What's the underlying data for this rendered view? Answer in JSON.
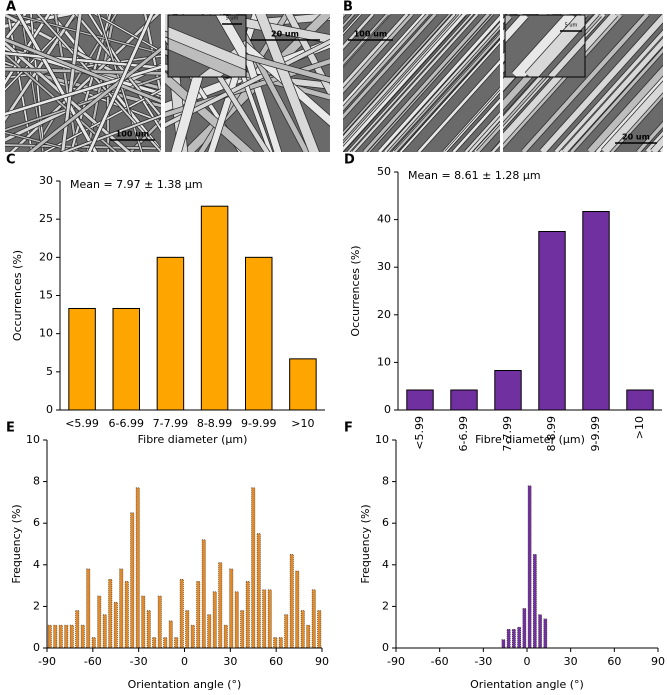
{
  "images": [
    {
      "panel": "A",
      "scale_bars": [
        "100 um",
        "5 um",
        "20 um"
      ]
    },
    {
      "panel": "B",
      "scale_bars": [
        "100 um",
        "5 um",
        "20 um"
      ]
    }
  ],
  "chart_data": [
    {
      "type": "bar",
      "panel": "C",
      "annotation": "Mean = 7.97 ± 1.38 µm",
      "xlabel": "Fibre diameter (µm)",
      "ylabel": "Occurrences (%)",
      "categories": [
        "<5.99",
        "6-6.99",
        "7-7.99",
        "8-8.99",
        "9-9.99",
        ">10"
      ],
      "values": [
        13.3,
        13.3,
        20,
        26.7,
        20,
        6.7
      ],
      "color": "#ffa500",
      "ylim": [
        0,
        30
      ],
      "yticks": [
        0,
        5,
        10,
        15,
        20,
        25,
        30
      ]
    },
    {
      "type": "bar",
      "panel": "D",
      "annotation": "Mean  = 8.61 ± 1.28 µm",
      "xlabel": "Fibre diameter (µm)",
      "ylabel": "Occurrences (%)",
      "categories": [
        "<5.99",
        "6-6.99",
        "7-7.99",
        "8-8.99",
        "9-9.99",
        ">10"
      ],
      "values": [
        4.2,
        4.2,
        8.3,
        37.5,
        41.7,
        4.2
      ],
      "color": "#7030a0",
      "xtick_label_rotation": 90,
      "ylim": [
        0,
        50
      ],
      "yticks": [
        0,
        10,
        20,
        30,
        40,
        50
      ]
    },
    {
      "type": "histogram",
      "panel": "E",
      "xlabel": "Orientation angle (°)",
      "ylabel": "Frequency (%)",
      "bins": [
        -90,
        -86.4,
        -82.8,
        -79.2,
        -75.6,
        -72,
        -68.4,
        -64.8,
        -61.2,
        -57.6,
        -54,
        -50.4,
        -46.8,
        -43.2,
        -39.6,
        -36,
        -32.4,
        -28.8,
        -25.2,
        -21.6,
        -18,
        -14.4,
        -10.8,
        -7.2,
        -3.6,
        0,
        3.6,
        7.2,
        10.8,
        14.4,
        18,
        21.6,
        25.2,
        28.8,
        32.4,
        36,
        39.6,
        43.2,
        46.8,
        50.4,
        54,
        57.6,
        61.2,
        64.8,
        68.4,
        72,
        75.6,
        79.2,
        82.8,
        86.4,
        90
      ],
      "values": [
        1.1,
        1.1,
        1.1,
        1.1,
        1.1,
        1.8,
        1.1,
        3.8,
        0.5,
        2.5,
        1.6,
        3.3,
        2.2,
        3.8,
        3.2,
        6.5,
        7.7,
        2.5,
        1.8,
        0.5,
        2.5,
        0.5,
        1.3,
        0.5,
        3.3,
        1.8,
        1.1,
        3.2,
        5.2,
        1.6,
        2.7,
        4.1,
        1.1,
        3.8,
        2.7,
        1.8,
        3.2,
        7.7,
        5.5,
        2.8,
        2.8,
        0.5,
        0.5,
        1.6,
        4.5,
        3.7,
        1.8,
        1.1,
        2.8,
        1.8
      ],
      "color": "#e08a2c",
      "xlim": [
        -90,
        90
      ],
      "xticks": [
        -90,
        -60,
        -30,
        0,
        30,
        60,
        90
      ],
      "ylim": [
        0,
        10
      ],
      "yticks": [
        0,
        2,
        4,
        6,
        8,
        10
      ]
    },
    {
      "type": "histogram",
      "panel": "F",
      "xlabel": "Orientation angle (°)",
      "ylabel": "Frequency (%)",
      "bins": [
        -90,
        -86.4,
        -82.8,
        -79.2,
        -75.6,
        -72,
        -68.4,
        -64.8,
        -61.2,
        -57.6,
        -54,
        -50.4,
        -46.8,
        -43.2,
        -39.6,
        -36,
        -32.4,
        -28.8,
        -25.2,
        -21.6,
        -18,
        -14.4,
        -10.8,
        -7.2,
        -3.6,
        0,
        3.6,
        7.2,
        10.8,
        14.4,
        18,
        21.6,
        25.2,
        28.8,
        32.4,
        36,
        39.6,
        43.2,
        46.8,
        50.4,
        54,
        57.6,
        61.2,
        64.8,
        68.4,
        72,
        75.6,
        79.2,
        82.8,
        86.4,
        90
      ],
      "values": [
        0,
        0,
        0,
        0,
        0,
        0,
        0,
        0,
        0,
        0,
        0,
        0,
        0,
        0,
        0,
        0,
        0,
        0,
        0,
        0,
        0.4,
        0.9,
        0.9,
        1.0,
        1.9,
        7.8,
        4.5,
        1.6,
        1.4,
        0,
        0,
        0,
        0,
        0,
        0,
        0,
        0,
        0,
        0,
        0,
        0,
        0,
        0,
        0,
        0,
        0,
        0,
        0,
        0,
        0
      ],
      "color": "#7030a0",
      "xlim": [
        -90,
        90
      ],
      "xticks": [
        -90,
        -60,
        -30,
        0,
        30,
        60,
        90
      ],
      "ylim": [
        0,
        10
      ],
      "yticks": [
        0,
        2,
        4,
        6,
        8,
        10
      ]
    }
  ]
}
